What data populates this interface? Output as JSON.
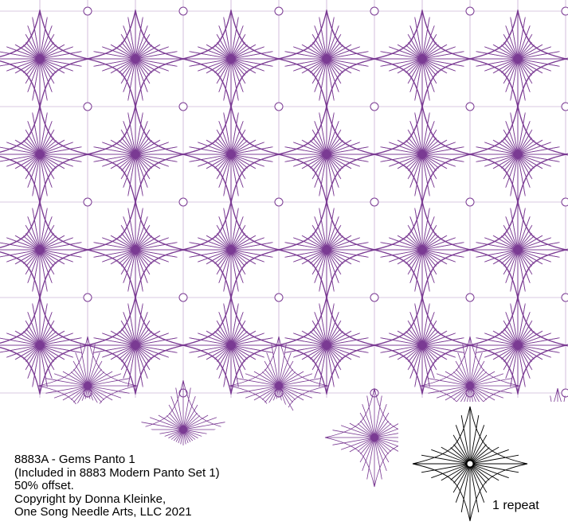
{
  "design": {
    "line_color": "#7a3a93",
    "sample_line_color": "#000000",
    "background": "#ffffff",
    "motif": "pointed-star-gem-icon"
  },
  "caption": {
    "line1": "8883A - Gems Panto 1",
    "line2": "(Included in 8883 Modern Panto Set 1)",
    "line3": "50% offset.",
    "line4": "Copyright by Donna Kleinke,",
    "line5": "One Song Needle Arts, LLC 2021"
  },
  "repeat": {
    "label": "1 repeat"
  }
}
